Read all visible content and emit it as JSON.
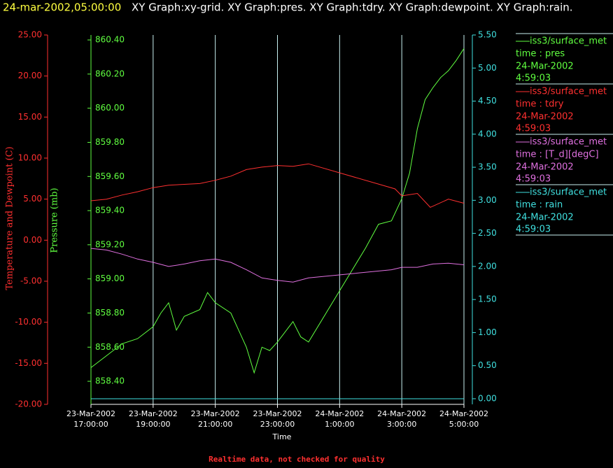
{
  "chart_data": {
    "type": "line",
    "header": [
      "24-mar-2002,05:00:00",
      "XY Graph:xy-grid.  XY Graph:pres.  XY Graph:tdry.  XY Graph:dewpoint.  XY Graph:rain."
    ],
    "xlabel": "Time",
    "ylabel": "Temperature and Dewpoint (C)",
    "y2label": "Pressure (mb)",
    "footnote": "Realtime data, not checked for quality",
    "grid": true,
    "xlim": [
      "2002-03-23T17:00:00",
      "2002-03-24T05:00:00"
    ],
    "xticks": [
      {
        "value": "2002-03-23T17:00:00",
        "label": [
          "23-Mar-2002",
          "17:00:00"
        ]
      },
      {
        "value": "2002-03-23T19:00:00",
        "label": [
          "23-Mar-2002",
          "19:00:00"
        ]
      },
      {
        "value": "2002-03-23T21:00:00",
        "label": [
          "23-Mar-2002",
          "21:00:00"
        ]
      },
      {
        "value": "2002-03-23T23:00:00",
        "label": [
          "23-Mar-2002",
          "23:00:00"
        ]
      },
      {
        "value": "2002-03-24T01:00:00",
        "label": [
          "24-Mar-2002",
          "1:00:00"
        ]
      },
      {
        "value": "2002-03-24T03:00:00",
        "label": [
          "24-Mar-2002",
          "3:00:00"
        ]
      },
      {
        "value": "2002-03-24T05:00:00",
        "label": [
          "24-Mar-2002",
          "5:00:00"
        ]
      }
    ],
    "ylim": [
      -20,
      25
    ],
    "yticks": [
      {
        "value": -20,
        "label": "-20.00"
      },
      {
        "value": -15,
        "label": "-15.00"
      },
      {
        "value": -10,
        "label": "-10.00"
      },
      {
        "value": -5,
        "label": "-5.00"
      },
      {
        "value": 0,
        "label": "0.00"
      },
      {
        "value": 5,
        "label": "5.00"
      },
      {
        "value": 10,
        "label": "10.00"
      },
      {
        "value": 15,
        "label": "15.00"
      },
      {
        "value": 20,
        "label": "20.00"
      },
      {
        "value": 25,
        "label": "25.00"
      }
    ],
    "y2lim": [
      858.265,
      860.429
    ],
    "y2ticks": [
      {
        "value": 858.4,
        "label": "858.40"
      },
      {
        "value": 858.6,
        "label": "858.60"
      },
      {
        "value": 858.8,
        "label": "858.80"
      },
      {
        "value": 859.0,
        "label": "859.00"
      },
      {
        "value": 859.2,
        "label": "859.20"
      },
      {
        "value": 859.4,
        "label": "859.40"
      },
      {
        "value": 859.6,
        "label": "859.60"
      },
      {
        "value": 859.8,
        "label": "859.80"
      },
      {
        "value": 860.0,
        "label": "860.00"
      },
      {
        "value": 860.2,
        "label": "860.20"
      },
      {
        "value": 860.4,
        "label": "860.40"
      }
    ],
    "y3lim": [
      -0.085,
      5.5
    ],
    "y3ticks": [
      {
        "value": 0,
        "label": "0.00"
      },
      {
        "value": 0.5,
        "label": "0.50"
      },
      {
        "value": 1,
        "label": "1.00"
      },
      {
        "value": 1.5,
        "label": "1.50"
      },
      {
        "value": 2,
        "label": "2.00"
      },
      {
        "value": 2.5,
        "label": "2.50"
      },
      {
        "value": 3,
        "label": "3.00"
      },
      {
        "value": 3.5,
        "label": "3.50"
      },
      {
        "value": 4,
        "label": "4.00"
      },
      {
        "value": 4.5,
        "label": "4.50"
      },
      {
        "value": 5,
        "label": "5.00"
      },
      {
        "value": 5.5,
        "label": "5.50"
      }
    ],
    "axis_colors": {
      "y": "#ff3030",
      "y2": "#60ff40",
      "y3": "#40e0e0"
    },
    "series": [
      {
        "source": "iss3/surface_met",
        "name": "time : pres",
        "last_date": "24-Mar-2002",
        "last_time": "4:59:03",
        "color": "#60ff40",
        "axis": "y2",
        "x": [
          "2002-03-23T17:00:00",
          "2002-03-23T17:30:00",
          "2002-03-23T18:00:00",
          "2002-03-23T18:30:00",
          "2002-03-23T19:00:00",
          "2002-03-23T19:15:00",
          "2002-03-23T19:30:00",
          "2002-03-23T19:45:00",
          "2002-03-23T20:00:00",
          "2002-03-23T20:30:00",
          "2002-03-23T20:45:00",
          "2002-03-23T21:00:00",
          "2002-03-23T21:30:00",
          "2002-03-23T21:45:00",
          "2002-03-23T22:00:00",
          "2002-03-23T22:15:00",
          "2002-03-23T22:30:00",
          "2002-03-23T22:45:00",
          "2002-03-23T23:00:00",
          "2002-03-23T23:30:00",
          "2002-03-23T23:45:00",
          "2002-03-24T00:00:00",
          "2002-03-24T01:50:00",
          "2002-03-24T02:15:00",
          "2002-03-24T02:40:00",
          "2002-03-24T03:00:00",
          "2002-03-24T03:15:00",
          "2002-03-24T03:30:00",
          "2002-03-24T03:45:00",
          "2002-03-24T04:00:00",
          "2002-03-24T04:15:00",
          "2002-03-24T04:30:00",
          "2002-03-24T04:45:00",
          "2002-03-24T05:00:00"
        ],
        "values": [
          858.48,
          858.55,
          858.62,
          858.65,
          858.72,
          858.8,
          858.86,
          858.7,
          858.78,
          858.82,
          858.92,
          858.86,
          858.8,
          858.7,
          858.6,
          858.45,
          858.6,
          858.58,
          858.63,
          858.75,
          858.66,
          858.63,
          859.18,
          859.32,
          859.34,
          859.47,
          859.62,
          859.88,
          860.05,
          860.12,
          860.18,
          860.22,
          860.28,
          860.35
        ]
      },
      {
        "source": "iss3/surface_met",
        "name": "time : tdry",
        "last_date": "24-Mar-2002",
        "last_time": "4:59:03",
        "color": "#ff3030",
        "axis": "y",
        "x": [
          "2002-03-23T17:00:00",
          "2002-03-23T17:30:00",
          "2002-03-23T18:00:00",
          "2002-03-23T18:30:00",
          "2002-03-23T19:00:00",
          "2002-03-23T19:30:00",
          "2002-03-23T20:00:00",
          "2002-03-23T20:30:00",
          "2002-03-23T21:00:00",
          "2002-03-23T21:30:00",
          "2002-03-23T22:00:00",
          "2002-03-23T22:30:00",
          "2002-03-23T23:00:00",
          "2002-03-23T23:30:00",
          "2002-03-24T00:00:00",
          "2002-03-24T02:47:00",
          "2002-03-24T03:00:00",
          "2002-03-24T03:30:00",
          "2002-03-24T03:55:00",
          "2002-03-24T04:30:00",
          "2002-03-24T05:00:00"
        ],
        "values": [
          4.8,
          5.0,
          5.5,
          5.9,
          6.4,
          6.7,
          6.8,
          6.9,
          7.3,
          7.8,
          8.6,
          8.9,
          9.1,
          9.0,
          9.3,
          6.25,
          5.4,
          5.7,
          4.0,
          5.0,
          4.5
        ]
      },
      {
        "source": "iss3/surface_met",
        "name": "time : [T_d][degC]",
        "last_date": "24-Mar-2002",
        "last_time": "4:59:03",
        "color": "#e070e0",
        "axis": "y",
        "x": [
          "2002-03-23T17:00:00",
          "2002-03-23T17:30:00",
          "2002-03-23T18:00:00",
          "2002-03-23T18:30:00",
          "2002-03-23T19:00:00",
          "2002-03-23T19:30:00",
          "2002-03-23T20:00:00",
          "2002-03-23T20:30:00",
          "2002-03-23T21:00:00",
          "2002-03-23T21:30:00",
          "2002-03-23T22:00:00",
          "2002-03-23T22:30:00",
          "2002-03-23T23:00:00",
          "2002-03-23T23:30:00",
          "2002-03-24T00:00:00",
          "2002-03-24T02:40:00",
          "2002-03-24T03:00:00",
          "2002-03-24T03:30:00",
          "2002-03-24T04:00:00",
          "2002-03-24T04:30:00",
          "2002-03-24T05:00:00"
        ],
        "values": [
          -1.0,
          -1.2,
          -1.7,
          -2.3,
          -2.7,
          -3.2,
          -2.9,
          -2.5,
          -2.3,
          -2.7,
          -3.6,
          -4.6,
          -4.9,
          -5.1,
          -4.6,
          -3.6,
          -3.3,
          -3.3,
          -2.9,
          -2.8,
          -3.0
        ]
      },
      {
        "source": "iss3/surface_met",
        "name": "time : rain",
        "last_date": "24-Mar-2002",
        "last_time": "4:59:03",
        "color": "#40e0e0",
        "axis": "y3",
        "x": [
          "2002-03-23T17:00:00",
          "2002-03-24T05:00:00"
        ],
        "values": [
          0,
          0
        ]
      }
    ]
  }
}
